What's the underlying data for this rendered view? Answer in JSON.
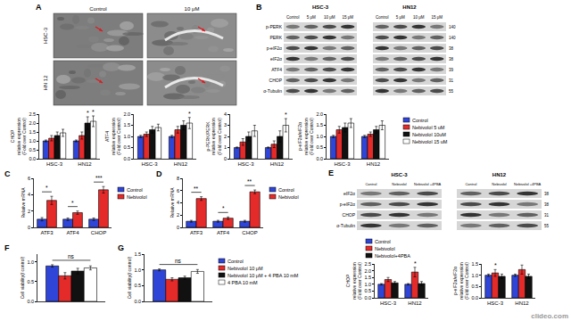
{
  "chart_data": [
    {
      "type": "bar",
      "y_label": [
        "CHOP",
        "relative expression",
        "(Fold over Control)"
      ],
      "categories": [
        "HSC-3",
        "HN12"
      ],
      "series": [
        {
          "name": "Control",
          "color": "#2f45d8",
          "values": [
            1.0,
            1.0
          ],
          "errors": [
            0.05,
            0.05
          ]
        },
        {
          "name": "Nebivolol 5 uM",
          "color": "#e52a2a",
          "values": [
            1.15,
            1.3
          ],
          "errors": [
            0.15,
            0.2
          ]
        },
        {
          "name": "Nebivolol 10uM",
          "color": "#111111",
          "values": [
            1.3,
            2.0
          ],
          "errors": [
            0.2,
            0.35
          ]
        },
        {
          "name": "Nebivolol 15 uM",
          "color": "#ffffff",
          "values": [
            1.45,
            2.1
          ],
          "errors": [
            0.2,
            0.3
          ]
        }
      ],
      "ylim": [
        0,
        2.5
      ],
      "yticks": [
        {
          "value": 0,
          "label": "0.0"
        },
        0.5,
        {
          "value": 1,
          "label": "1.0"
        },
        1.5,
        {
          "value": 2,
          "label": "2.0"
        },
        2.5
      ],
      "annotations": [
        {
          "text": "*",
          "category": "HN12",
          "series": "Nebivolol 10uM"
        },
        {
          "text": "*",
          "category": "HN12",
          "series": "Nebivolol 15 uM"
        }
      ]
    },
    {
      "type": "bar",
      "y_label": [
        "ATF4",
        "relative expression",
        "(Fold over Control)"
      ],
      "categories": [
        "HSC-3",
        "HN12"
      ],
      "series": [
        {
          "name": "Control",
          "color": "#2f45d8",
          "values": [
            1.0,
            1.0
          ],
          "errors": [
            0.05,
            0.05
          ]
        },
        {
          "name": "Nebivolol 5 uM",
          "color": "#e52a2a",
          "values": [
            1.1,
            1.3
          ],
          "errors": [
            0.1,
            0.15
          ]
        },
        {
          "name": "Nebivolol 10uM",
          "color": "#111111",
          "values": [
            1.3,
            1.5
          ],
          "errors": [
            0.15,
            0.2
          ]
        },
        {
          "name": "Nebivolol 15 uM",
          "color": "#ffffff",
          "values": [
            1.4,
            1.6
          ],
          "errors": [
            0.15,
            0.25
          ]
        }
      ],
      "ylim": [
        0,
        2
      ],
      "yticks": [
        {
          "value": 0,
          "label": "0.0"
        },
        0.5,
        {
          "value": 1,
          "label": "1.0"
        },
        1.5,
        {
          "value": 2,
          "label": "2.0"
        }
      ],
      "annotations": [
        {
          "text": "*",
          "category": "HN12",
          "series": "Nebivolol 15 uM"
        }
      ]
    },
    {
      "type": "bar",
      "y_label": [
        "p-PERK/PERK",
        "relative expression",
        "(Fold over Control)"
      ],
      "categories": [
        "HSC-3",
        "HN12"
      ],
      "series": [
        {
          "name": "Control",
          "color": "#2f45d8",
          "values": [
            1.0,
            1.0
          ],
          "errors": [
            0.05,
            0.05
          ]
        },
        {
          "name": "Nebivolol 5 uM",
          "color": "#e52a2a",
          "values": [
            1.5,
            1.3
          ],
          "errors": [
            0.3,
            0.3
          ]
        },
        {
          "name": "Nebivolol 10uM",
          "color": "#111111",
          "values": [
            2.0,
            2.0
          ],
          "errors": [
            0.4,
            0.5
          ]
        },
        {
          "name": "Nebivolol 15 uM",
          "color": "#ffffff",
          "values": [
            2.5,
            3.0
          ],
          "errors": [
            0.5,
            0.6
          ]
        }
      ],
      "ylim": [
        0,
        4
      ],
      "yticks": [
        0,
        1,
        2,
        3,
        4
      ],
      "annotations": [
        {
          "text": "*",
          "category": "HN12",
          "series": "Nebivolol 15 uM"
        }
      ]
    },
    {
      "type": "bar",
      "y_label": [
        "p-eIF2α/eIF2α",
        "relative expression",
        "(Fold over Control)"
      ],
      "categories": [
        "HSC-3",
        "HN12"
      ],
      "series": [
        {
          "name": "Control",
          "color": "#2f45d8",
          "values": [
            1.0,
            1.0
          ],
          "errors": [
            0.05,
            0.05
          ]
        },
        {
          "name": "Nebivolol 5 uM",
          "color": "#e52a2a",
          "values": [
            1.3,
            1.1
          ],
          "errors": [
            0.15,
            0.1
          ]
        },
        {
          "name": "Nebivolol 10uM",
          "color": "#111111",
          "values": [
            1.4,
            1.3
          ],
          "errors": [
            0.2,
            0.15
          ]
        },
        {
          "name": "Nebivolol 15 uM",
          "color": "#ffffff",
          "values": [
            1.6,
            1.5
          ],
          "errors": [
            0.2,
            0.2
          ]
        }
      ],
      "ylim": [
        0,
        2
      ],
      "yticks": [
        {
          "value": 0,
          "label": "0.0"
        },
        0.5,
        {
          "value": 1,
          "label": "1.0"
        },
        1.5,
        {
          "value": 2,
          "label": "2.0"
        }
      ],
      "legend": "right"
    },
    {
      "type": "bar",
      "panel": "C",
      "y_label": [
        "Relative mRNA"
      ],
      "categories": [
        "ATF3",
        "ATF4",
        "CHOP"
      ],
      "series": [
        {
          "name": "Control",
          "color": "#2f45d8",
          "values": [
            1.0,
            1.0,
            1.0
          ],
          "errors": [
            0.2,
            0.15,
            0.15
          ]
        },
        {
          "name": "Nebivolol",
          "color": "#e52a2a",
          "values": [
            3.3,
            1.8,
            4.6
          ],
          "errors": [
            0.5,
            0.2,
            0.4
          ]
        }
      ],
      "ylim": [
        0,
        6
      ],
      "yticks": [
        0,
        2,
        4,
        6
      ],
      "legend": "right",
      "annotations": [
        {
          "text": "*",
          "category": "ATF3"
        },
        {
          "text": "*",
          "category": "ATF4"
        },
        {
          "text": "***",
          "category": "CHOP"
        }
      ]
    },
    {
      "type": "bar",
      "panel": "D",
      "y_label": [
        "Relative mRNA"
      ],
      "categories": [
        "ATF3",
        "ATF4",
        "CHOP"
      ],
      "series": [
        {
          "name": "Control",
          "color": "#2f45d8",
          "values": [
            1.0,
            1.0,
            1.0
          ],
          "errors": [
            0.15,
            0.15,
            0.15
          ]
        },
        {
          "name": "Nebivolol",
          "color": "#e52a2a",
          "values": [
            4.7,
            1.5,
            5.8
          ],
          "errors": [
            0.3,
            0.2,
            0.3
          ]
        }
      ],
      "ylim": [
        0,
        8
      ],
      "yticks": [
        0,
        2,
        4,
        6,
        8
      ],
      "legend": "right",
      "annotations": [
        {
          "text": "**",
          "category": "ATF3"
        },
        {
          "text": "*",
          "category": "ATF4"
        },
        {
          "text": "**",
          "category": "CHOP"
        }
      ]
    },
    {
      "type": "bar",
      "panel": "F",
      "y_label": [
        "Cell viability(/ control)"
      ],
      "categories": [
        null
      ],
      "series": [
        {
          "name": "Control",
          "color": "#2f45d8",
          "values": [
            0.9
          ],
          "errors": [
            0.03
          ]
        },
        {
          "name": "Nebivolol 10 μM",
          "color": "#e52a2a",
          "values": [
            0.65
          ],
          "errors": [
            0.08
          ]
        },
        {
          "name": "Nebivolol 10 μM + 4 PBA 10 mM",
          "color": "#111111",
          "values": [
            0.77
          ],
          "errors": [
            0.07
          ]
        },
        {
          "name": "4 PBA 10 mM",
          "color": "#ffffff",
          "values": [
            0.85
          ],
          "errors": [
            0.05
          ]
        }
      ],
      "ylim": [
        0,
        1.2
      ],
      "yticks": [
        {
          "value": 0,
          "label": "0.0"
        },
        0.5,
        {
          "value": 1,
          "label": "1.0"
        }
      ],
      "annotations": [
        {
          "text": "ns",
          "from": "Control",
          "to": "4 PBA 10 mM"
        }
      ]
    },
    {
      "type": "bar",
      "panel": "G",
      "y_label": [
        "Cell viability(/ control)"
      ],
      "categories": [
        null
      ],
      "series": [
        {
          "name": "Control",
          "color": "#2f45d8",
          "values": [
            1.0
          ],
          "errors": [
            0.03
          ]
        },
        {
          "name": "Nebivolol 10 μM",
          "color": "#e52a2a",
          "values": [
            0.7
          ],
          "errors": [
            0.05
          ]
        },
        {
          "name": "Nebivolol 10 μM + 4 PBA 10 mM",
          "color": "#111111",
          "values": [
            0.75
          ],
          "errors": [
            0.05
          ]
        },
        {
          "name": "4 PBA 10 mM",
          "color": "#ffffff",
          "values": [
            0.95
          ],
          "errors": [
            0.06
          ]
        }
      ],
      "ylim": [
        0,
        1.5
      ],
      "yticks": [
        {
          "value": 0,
          "label": "0.0"
        },
        0.5,
        {
          "value": 1,
          "label": "1.0"
        },
        1.5
      ],
      "legend": "right",
      "annotations": [
        {
          "text": "ns",
          "from": "Control",
          "to": "4 PBA 10 mM"
        }
      ]
    },
    {
      "type": "bar",
      "y_label": [
        "CHOP",
        "relative expression",
        "(Fold over Control)"
      ],
      "categories": [
        "HSC-3",
        "HN12"
      ],
      "series": [
        {
          "name": "Control",
          "color": "#2f45d8",
          "values": [
            1.0,
            1.0
          ],
          "errors": [
            0.05,
            0.05
          ]
        },
        {
          "name": "Nebivolol",
          "color": "#e52a2a",
          "values": [
            1.35,
            1.9
          ],
          "errors": [
            0.15,
            0.35
          ]
        },
        {
          "name": "Nebivolol+4PBA",
          "color": "#111111",
          "values": [
            1.1,
            1.05
          ],
          "errors": [
            0.1,
            0.15
          ]
        }
      ],
      "ylim": [
        0,
        2.5
      ],
      "yticks": [
        {
          "value": 0,
          "label": "0.0"
        },
        0.5,
        {
          "value": 1,
          "label": "1.0"
        },
        1.5,
        {
          "value": 2,
          "label": "2.0"
        },
        2.5
      ],
      "legend": "top",
      "annotations": [
        {
          "text": "*",
          "category": "HN12",
          "series": "Nebivolol"
        }
      ]
    },
    {
      "type": "bar",
      "y_label": [
        "p-eIF2α/eIF2α",
        "relative expression",
        "(Fold over Control)"
      ],
      "categories": [
        "HSC-3",
        "HN12"
      ],
      "series": [
        {
          "name": "Control",
          "color": "#2f45d8",
          "values": [
            1.0,
            1.0
          ],
          "errors": [
            0.05,
            0.05
          ]
        },
        {
          "name": "Nebivolol",
          "color": "#e52a2a",
          "values": [
            1.1,
            1.25
          ],
          "errors": [
            0.15,
            0.2
          ]
        },
        {
          "name": "Nebivolol+4PBA",
          "color": "#111111",
          "values": [
            0.95,
            0.95
          ],
          "errors": [
            0.1,
            0.1
          ]
        }
      ],
      "ylim": [
        0,
        1.5
      ],
      "yticks": [
        {
          "value": 0,
          "label": "0.0"
        },
        0.5,
        {
          "value": 1,
          "label": "1.0"
        },
        1.5
      ],
      "annotations": [
        {
          "text": "*",
          "category": "HSC-3",
          "series": "Nebivolol"
        }
      ]
    }
  ],
  "panels": {
    "A": {
      "label": "A",
      "columns": [
        "Control",
        "10 μM"
      ],
      "rows": [
        "HSC-3",
        "HN 12"
      ]
    },
    "B": {
      "label": "B",
      "groups": [
        {
          "title": "HSC-3",
          "columns": [
            "Control",
            "5 μM",
            "10 μM",
            "15 μM"
          ]
        },
        {
          "title": "HN12",
          "columns": [
            "Control",
            "5 μM",
            "10 μM",
            "15 μM"
          ]
        }
      ],
      "rows": [
        "p-PERK",
        "PERK",
        "p-eIF2α",
        "eIF2α",
        "ATF4",
        "CHOP",
        "α-Tubulin"
      ],
      "weights": [
        140,
        140,
        38,
        38,
        39,
        31,
        55
      ]
    },
    "E": {
      "label": "E",
      "groups": [
        {
          "title": "HSC-3",
          "columns": [
            "Control",
            "Nebivolol",
            "Nebivolol +4PBA"
          ]
        },
        {
          "title": "HN12",
          "columns": [
            "Control",
            "Nebivolol",
            "Nebivolol +4PBA"
          ]
        }
      ],
      "rows": [
        "eIF2α",
        "p-eIF2α",
        "CHOP",
        "α-Tubulin"
      ],
      "weights": [
        38,
        38,
        31,
        55
      ]
    }
  },
  "watermark": "clideo.com"
}
